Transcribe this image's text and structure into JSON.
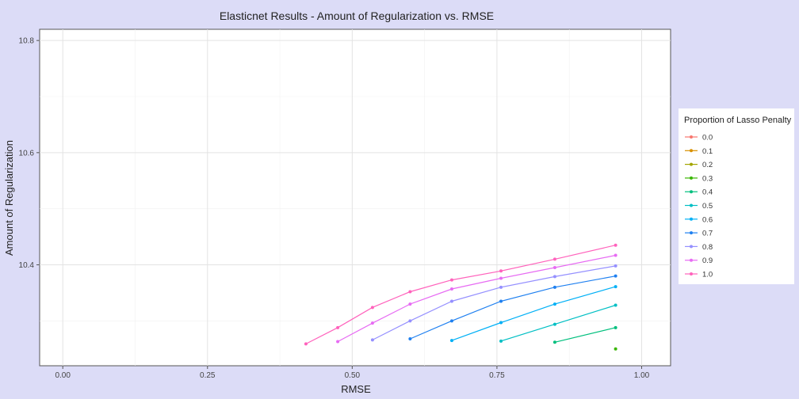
{
  "chart_data": {
    "type": "line",
    "title": "Elasticnet Results - Amount of Regularization vs. RMSE",
    "xlabel": "RMSE",
    "ylabel": "Amount of Regularization",
    "xlim": [
      -0.04,
      1.05
    ],
    "ylim": [
      10.22,
      10.82
    ],
    "x_ticks": [
      {
        "value": 0.0,
        "label": "0.00"
      },
      {
        "value": 0.25,
        "label": "0.25"
      },
      {
        "value": 0.5,
        "label": "0.50"
      },
      {
        "value": 0.75,
        "label": "0.75"
      },
      {
        "value": 1.0,
        "label": "1.00"
      }
    ],
    "y_ticks": [
      {
        "value": 10.4,
        "label": "10.4"
      },
      {
        "value": 10.6,
        "label": "10.6"
      },
      {
        "value": 10.8,
        "label": "10.8"
      }
    ],
    "grid": true,
    "legend": {
      "title": "Proportion of Lasso Penalty",
      "position": "right"
    },
    "series": [
      {
        "name": "0.0",
        "color": "#F8766D",
        "points": []
      },
      {
        "name": "0.1",
        "color": "#D89000",
        "points": []
      },
      {
        "name": "0.2",
        "color": "#A3A500",
        "points": []
      },
      {
        "name": "0.3",
        "color": "#39B600",
        "points": [
          [
            0.955,
            10.25
          ]
        ]
      },
      {
        "name": "0.4",
        "color": "#00BF7D",
        "points": [
          [
            0.85,
            10.262
          ],
          [
            0.955,
            10.288
          ]
        ]
      },
      {
        "name": "0.5",
        "color": "#00BFC4",
        "points": [
          [
            0.757,
            10.264
          ],
          [
            0.85,
            10.294
          ],
          [
            0.955,
            10.328
          ]
        ]
      },
      {
        "name": "0.6",
        "color": "#00B0F6",
        "points": [
          [
            0.672,
            10.265
          ],
          [
            0.757,
            10.297
          ],
          [
            0.85,
            10.33
          ],
          [
            0.955,
            10.361
          ]
        ]
      },
      {
        "name": "0.7",
        "color": "#1F80F0",
        "points": [
          [
            0.6,
            10.268
          ],
          [
            0.672,
            10.3
          ],
          [
            0.757,
            10.335
          ],
          [
            0.85,
            10.36
          ],
          [
            0.955,
            10.38
          ]
        ]
      },
      {
        "name": "0.8",
        "color": "#9590FF",
        "points": [
          [
            0.535,
            10.266
          ],
          [
            0.6,
            10.3
          ],
          [
            0.672,
            10.335
          ],
          [
            0.757,
            10.36
          ],
          [
            0.85,
            10.379
          ],
          [
            0.955,
            10.398
          ]
        ]
      },
      {
        "name": "0.9",
        "color": "#E76BF3",
        "points": [
          [
            0.475,
            10.263
          ],
          [
            0.535,
            10.296
          ],
          [
            0.6,
            10.33
          ],
          [
            0.672,
            10.357
          ],
          [
            0.757,
            10.376
          ],
          [
            0.85,
            10.395
          ],
          [
            0.955,
            10.417
          ]
        ]
      },
      {
        "name": "1.0",
        "color": "#FF62BC",
        "points": [
          [
            0.42,
            10.259
          ],
          [
            0.475,
            10.288
          ],
          [
            0.535,
            10.324
          ],
          [
            0.6,
            10.352
          ],
          [
            0.672,
            10.373
          ],
          [
            0.757,
            10.389
          ],
          [
            0.85,
            10.41
          ],
          [
            0.955,
            10.435
          ]
        ]
      }
    ]
  }
}
